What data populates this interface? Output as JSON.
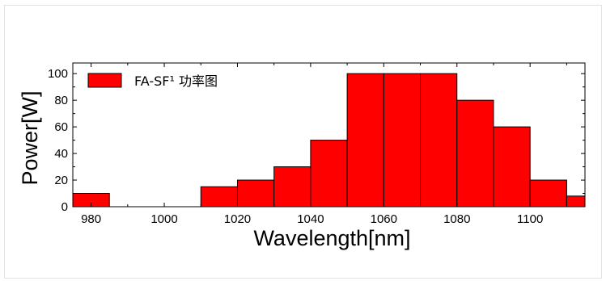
{
  "chart_data": {
    "type": "bar",
    "title": "",
    "xlabel": "Wavelength[nm]",
    "ylabel": "Power[W]",
    "xlim": [
      975,
      1115
    ],
    "ylim": [
      0,
      108
    ],
    "x_ticks": [
      "980",
      "1000",
      "1020",
      "1040",
      "1060",
      "1080",
      "1100"
    ],
    "x_tick_values": [
      980,
      1000,
      1020,
      1040,
      1060,
      1080,
      1100
    ],
    "y_ticks": [
      "0",
      "20",
      "40",
      "60",
      "80",
      "100"
    ],
    "y_tick_values": [
      0,
      20,
      40,
      60,
      80,
      100
    ],
    "bar_width": 10,
    "series": [
      {
        "name": "FA-SF¹ 功率图",
        "color": "#ff0000",
        "x": [
          975,
          985,
          995,
          1010,
          1020,
          1030,
          1040,
          1050,
          1060,
          1070,
          1080,
          1090,
          1100,
          1110
        ],
        "values": [
          10,
          0,
          0,
          15,
          20,
          30,
          50,
          100,
          100,
          100,
          80,
          60,
          20,
          8
        ]
      }
    ],
    "legend_position": "top-left",
    "grid": false
  }
}
